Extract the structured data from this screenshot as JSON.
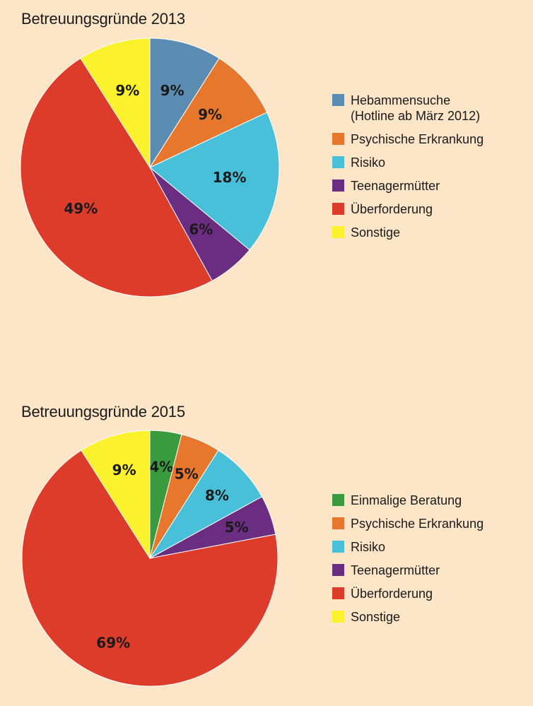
{
  "chart_data": [
    {
      "type": "pie",
      "title": "Betreuungsgründe 2013",
      "slices": [
        {
          "name": "Hebammensuche\n(Hotline ab März 2012)",
          "value": 9,
          "label": "9%",
          "color": "#5b8db3"
        },
        {
          "name": "Psychische Erkrankung",
          "value": 9,
          "label": "9%",
          "color": "#e8772e"
        },
        {
          "name": "Risiko",
          "value": 18,
          "label": "18%",
          "color": "#48c0d9"
        },
        {
          "name": "Teenagermütter",
          "value": 6,
          "label": "6%",
          "color": "#6a2d82"
        },
        {
          "name": "Überforderung",
          "value": 49,
          "label": "49%",
          "color": "#dd3c2b"
        },
        {
          "name": "Sonstige",
          "value": 9,
          "label": "9%",
          "color": "#fbf12c"
        }
      ],
      "legend_position": "right"
    },
    {
      "type": "pie",
      "title": "Betreuungsgründe 2015",
      "slices": [
        {
          "name": "Einmalige Beratung",
          "value": 4,
          "label": "4%",
          "color": "#3a9a3e"
        },
        {
          "name": "Psychische Erkrankung",
          "value": 5,
          "label": "5%",
          "color": "#e8772e"
        },
        {
          "name": "Risiko",
          "value": 8,
          "label": "8%",
          "color": "#48c0d9"
        },
        {
          "name": "Teenagermütter",
          "value": 5,
          "label": "5%",
          "color": "#6a2d82"
        },
        {
          "name": "Überforderung",
          "value": 69,
          "label": "69%",
          "color": "#dd3c2b"
        },
        {
          "name": "Sonstige",
          "value": 9,
          "label": "9%",
          "color": "#fbf12c"
        }
      ],
      "legend_position": "right"
    }
  ]
}
